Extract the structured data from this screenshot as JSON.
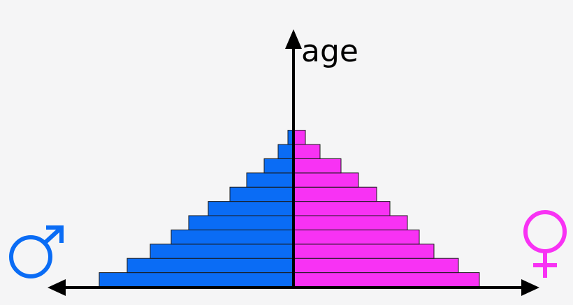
{
  "chart_data": {
    "type": "bar",
    "orientation": "horizontal",
    "layout": "population-pyramid",
    "ylabel": "age",
    "grid": false,
    "axis_arrows": [
      "up",
      "left",
      "right"
    ],
    "series": [
      {
        "side": "left",
        "symbol": "male-symbol",
        "color": "#0a6cf5",
        "values": [
          278,
          238,
          205,
          175,
          150,
          122,
          91,
          67,
          42,
          22,
          8
        ]
      },
      {
        "side": "right",
        "symbol": "female-symbol",
        "color": "#f832f4",
        "values": [
          266,
          236,
          201,
          180,
          163,
          138,
          119,
          93,
          68,
          38,
          17
        ]
      }
    ]
  }
}
